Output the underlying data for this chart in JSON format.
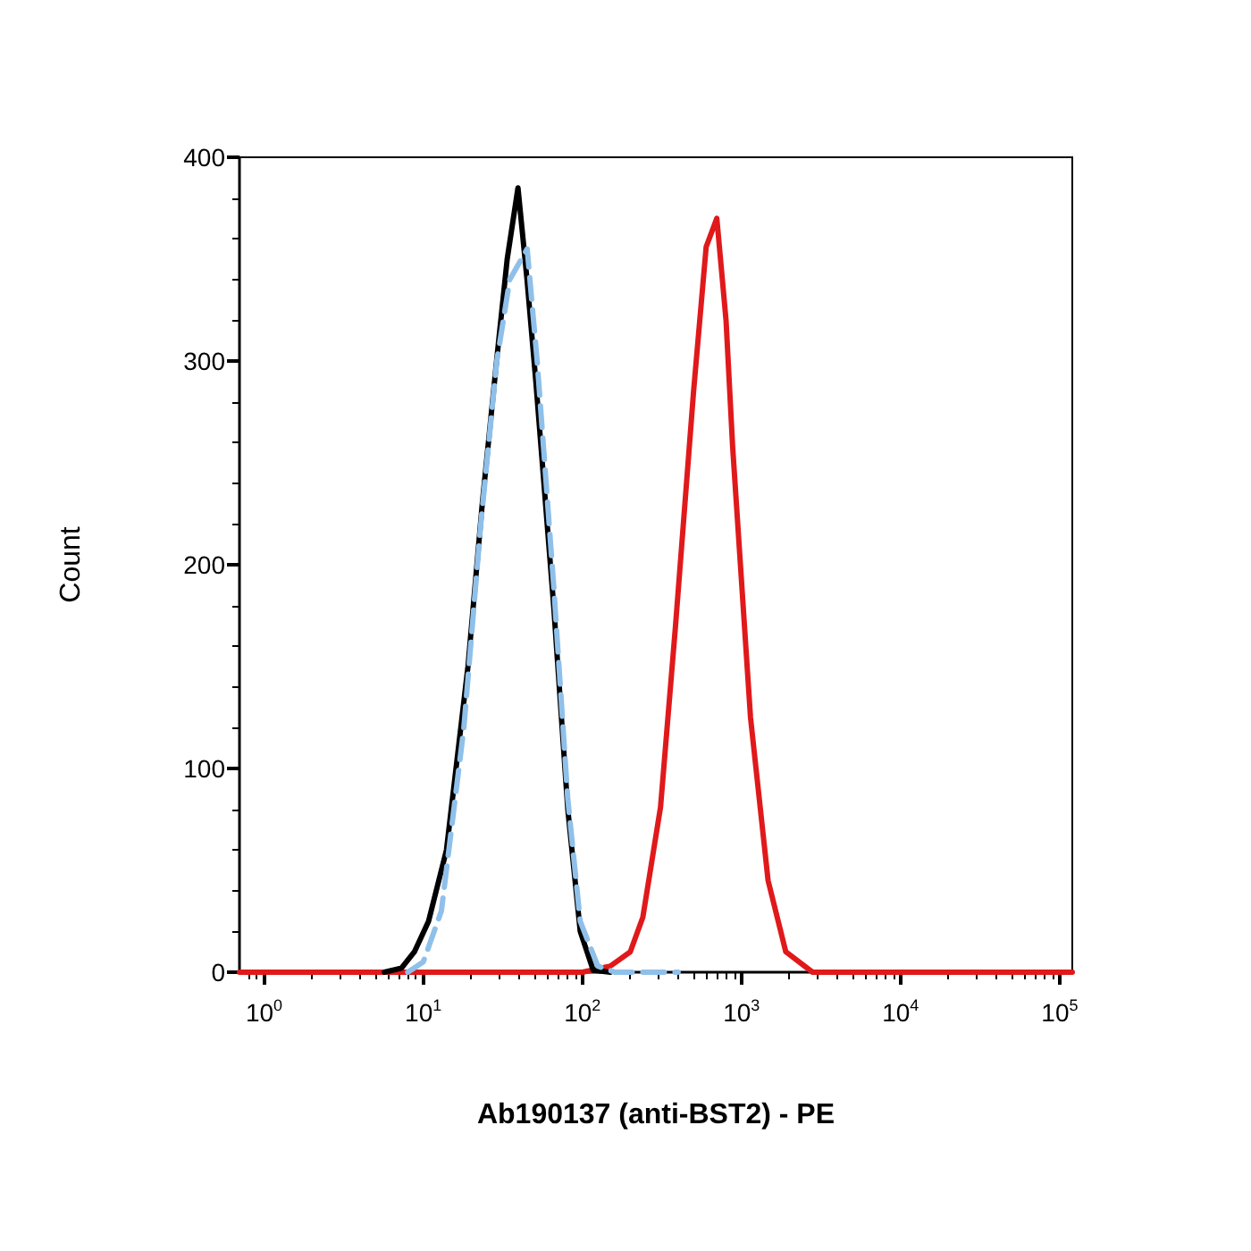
{
  "chart_data": {
    "type": "line",
    "xlabel": "Ab190137 (anti-BST2) - PE",
    "ylabel": "Count",
    "log": "x",
    "grid": false,
    "marker": "none",
    "xlim": [
      0.7,
      120000
    ],
    "xticks": [
      {
        "value": 1,
        "label": "10$^{0}$"
      },
      {
        "value": 10,
        "label": "10$^{1}$"
      },
      {
        "value": 100,
        "label": "10$^{2}$"
      },
      {
        "value": 1000,
        "label": "10$^{3}$"
      },
      {
        "value": 10000,
        "label": "10$^{4}$"
      },
      {
        "value": 100000,
        "label": "10$^{5}$"
      }
    ],
    "ylim": [
      0,
      400
    ],
    "yticks": [
      0,
      100,
      200,
      300,
      400
    ],
    "series": [
      {
        "color": "#e0191b",
        "line_style": "solid",
        "x": [
          0.7,
          100,
          150,
          200,
          240,
          310,
          385,
          500,
          600,
          700,
          800,
          880,
          1140,
          1470,
          1900,
          2800,
          5000,
          120000
        ],
        "values": [
          0,
          0,
          3,
          10,
          27,
          81,
          170,
          285,
          356,
          370,
          320,
          258,
          125,
          45,
          10,
          0,
          0,
          0
        ]
      },
      {
        "color": "#000000",
        "line_style": "solid",
        "x": [
          5.7,
          7.3,
          8.8,
          10.8,
          14,
          19.1,
          23.5,
          28.9,
          33.7,
          39.4,
          44.9,
          51,
          66,
          81,
          97,
          117,
          150
        ],
        "values": [
          0,
          2,
          10,
          25,
          60,
          150,
          230,
          300,
          350,
          385,
          340,
          290,
          180,
          80,
          20,
          1,
          0
        ]
      },
      {
        "color": "#8fc0ea",
        "line_style": "dashed",
        "x": [
          8,
          10,
          13,
          18,
          23,
          29,
          35,
          45,
          52,
          66,
          81,
          97,
          125,
          160,
          400
        ],
        "values": [
          0,
          5,
          30,
          120,
          220,
          300,
          340,
          355,
          300,
          190,
          85,
          25,
          3,
          0,
          0
        ]
      }
    ]
  }
}
